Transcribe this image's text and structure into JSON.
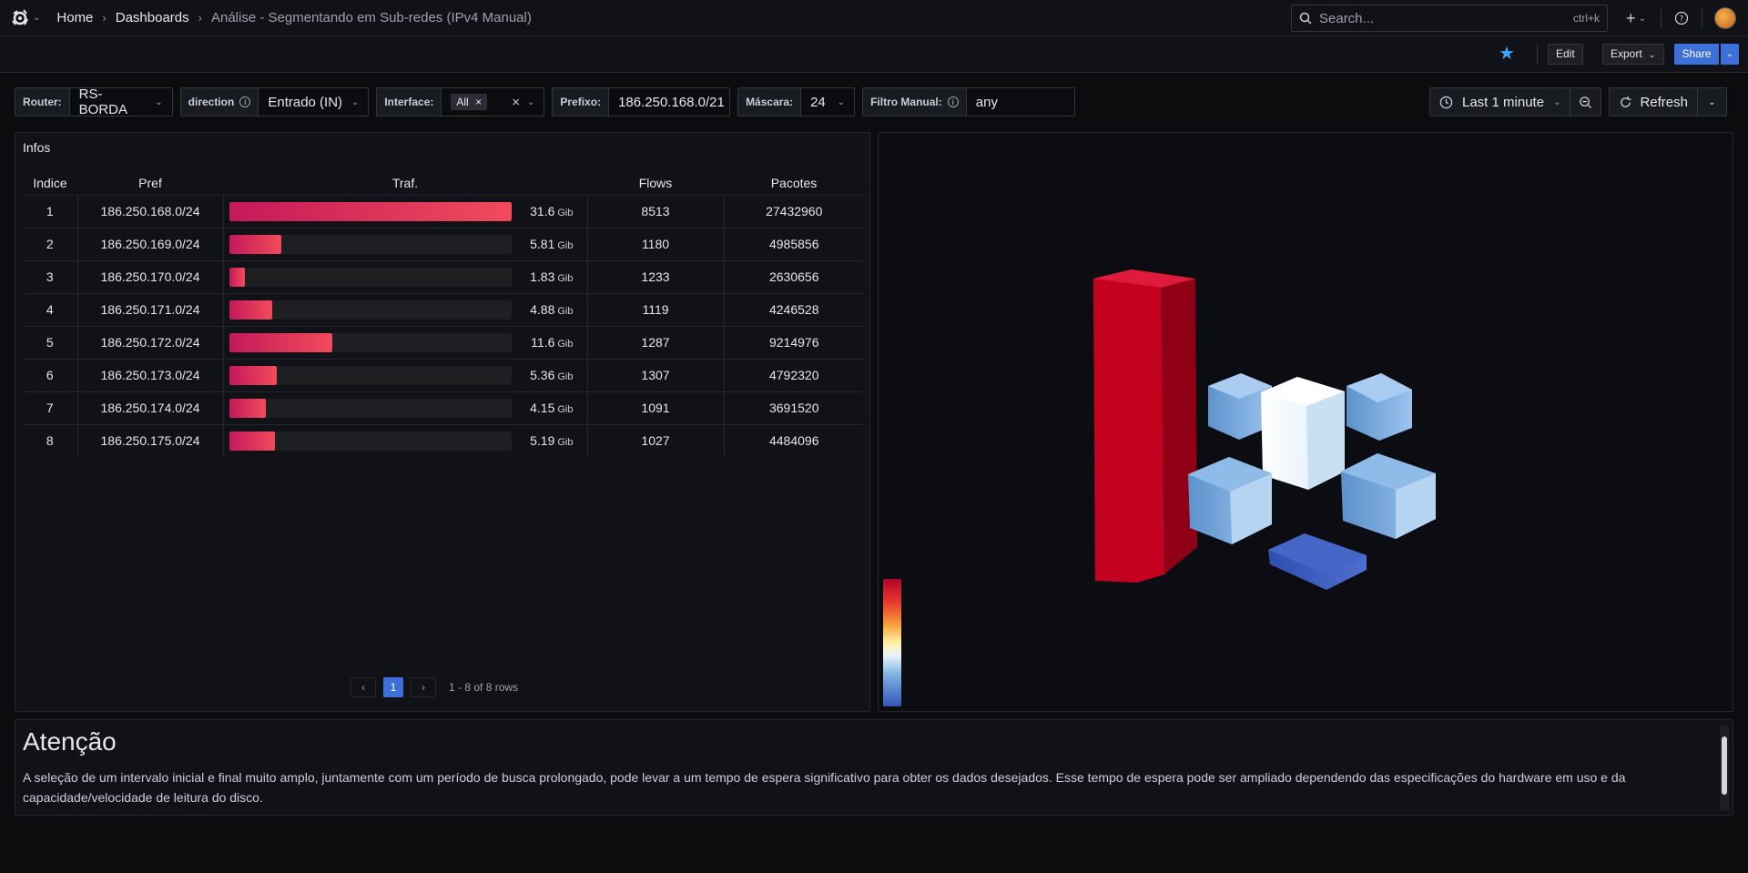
{
  "nav": {
    "breadcrumbs": [
      "Home",
      "Dashboards",
      "Análise - Segmentando em Sub-redes (IPv4 Manual)"
    ],
    "search_placeholder": "Search...",
    "search_shortcut": "ctrl+k",
    "plus_label": "+"
  },
  "toolbar": {
    "edit": "Edit",
    "export": "Export",
    "share": "Share"
  },
  "variables": {
    "router": {
      "label": "Router:",
      "value": "RS-BORDA"
    },
    "direction": {
      "label": "direction",
      "value": "Entrado (IN)"
    },
    "interface": {
      "label": "Interface:",
      "value": "All"
    },
    "prefixo": {
      "label": "Prefixo:",
      "value": "186.250.168.0/21"
    },
    "mascara": {
      "label": "Máscara:",
      "value": "24"
    },
    "filtro": {
      "label": "Filtro Manual:",
      "value": "any"
    }
  },
  "time": {
    "range": "Last 1 minute",
    "refresh": "Refresh"
  },
  "infos": {
    "title": "Infos",
    "headers": [
      "Indice",
      "Pref",
      "Traf.",
      "Flows",
      "Pacotes"
    ],
    "unit": "Gib",
    "max_traffic": 31.6,
    "rows": [
      {
        "idx": "1",
        "pref": "186.250.168.0/24",
        "traf": 31.6,
        "traf_label": "31.6",
        "flows": "8513",
        "pacotes": "27432960"
      },
      {
        "idx": "2",
        "pref": "186.250.169.0/24",
        "traf": 5.81,
        "traf_label": "5.81",
        "flows": "1180",
        "pacotes": "4985856"
      },
      {
        "idx": "3",
        "pref": "186.250.170.0/24",
        "traf": 1.83,
        "traf_label": "1.83",
        "flows": "1233",
        "pacotes": "2630656"
      },
      {
        "idx": "4",
        "pref": "186.250.171.0/24",
        "traf": 4.88,
        "traf_label": "4.88",
        "flows": "1119",
        "pacotes": "4246528"
      },
      {
        "idx": "5",
        "pref": "186.250.172.0/24",
        "traf": 11.6,
        "traf_label": "11.6",
        "flows": "1287",
        "pacotes": "9214976"
      },
      {
        "idx": "6",
        "pref": "186.250.173.0/24",
        "traf": 5.36,
        "traf_label": "5.36",
        "flows": "1307",
        "pacotes": "4792320"
      },
      {
        "idx": "7",
        "pref": "186.250.174.0/24",
        "traf": 4.15,
        "traf_label": "4.15",
        "flows": "1091",
        "pacotes": "3691520"
      },
      {
        "idx": "8",
        "pref": "186.250.175.0/24",
        "traf": 5.19,
        "traf_label": "5.19",
        "flows": "1027",
        "pacotes": "4484096"
      }
    ],
    "pager": {
      "current": "1",
      "summary": "1 - 8 of 8 rows"
    }
  },
  "attention": {
    "title": "Atenção",
    "text": "A seleção de um intervalo inicial e final muito amplo, juntamente com um período de busca prolongado, pode levar a um tempo de espera significativo para obter os dados desejados. Esse tempo de espera pode ser ampliado dependendo das especificações do hardware em uso e da capacidade/velocidade de leitura do disco."
  }
}
